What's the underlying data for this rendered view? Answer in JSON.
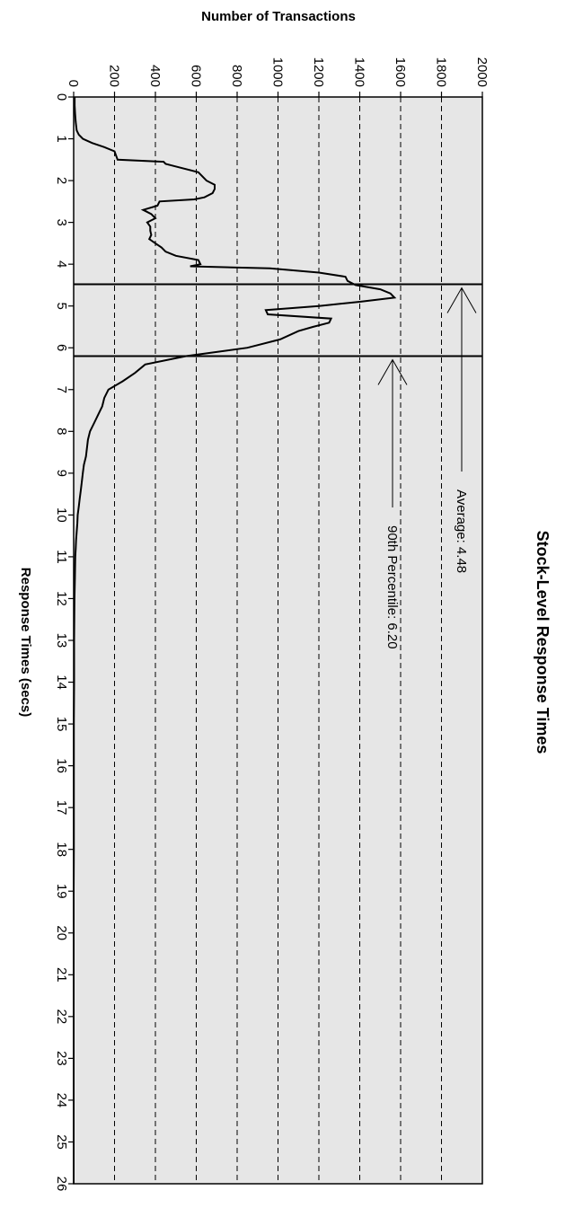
{
  "chart_data": {
    "type": "line",
    "title": "Stock-Level Response Times",
    "xlabel": "Response Times (secs)",
    "ylabel": "Number of Transactions",
    "xlim": [
      0,
      26
    ],
    "ylim": [
      0,
      2000
    ],
    "x_ticks": [
      "0",
      "1",
      "2",
      "3",
      "4",
      "5",
      "6",
      "7",
      "8",
      "9",
      "10",
      "11",
      "12",
      "13",
      "14",
      "15",
      "16",
      "17",
      "18",
      "19",
      "20",
      "21",
      "22",
      "23",
      "24",
      "25",
      "26"
    ],
    "y_ticks": [
      "0",
      "200",
      "400",
      "600",
      "800",
      "1000",
      "1200",
      "1400",
      "1600",
      "1800",
      "2000"
    ],
    "grid": "dashed horizontal",
    "background": "#e6e6e6",
    "series": [
      {
        "x": [
          0,
          0.2,
          0.4,
          0.6,
          0.8,
          0.9,
          1.0,
          1.1,
          1.2,
          1.3,
          1.5,
          1.55,
          1.6,
          1.65,
          1.8,
          2.0,
          2.1,
          2.2,
          2.3,
          2.4,
          2.45,
          2.5,
          2.6,
          2.7,
          2.8,
          2.9,
          3.0,
          3.1,
          3.2,
          3.3,
          3.4,
          3.5,
          3.6,
          3.7,
          3.8,
          3.9,
          4.0,
          4.05,
          4.1,
          4.2,
          4.3,
          4.4,
          4.5,
          4.6,
          4.7,
          4.8,
          4.9,
          5.0,
          5.1,
          5.2,
          5.3,
          5.4,
          5.5,
          5.6,
          5.8,
          6.0,
          6.2,
          6.4,
          6.6,
          6.8,
          7.0,
          7.2,
          7.4,
          7.6,
          7.8,
          8.0,
          8.2,
          8.4,
          8.6,
          8.8,
          9.0,
          9.2,
          9.4,
          9.6,
          9.8,
          10.0,
          10.2,
          10.4,
          10.6,
          10.8,
          11.0,
          11.5,
          12.0,
          12.5,
          13.0,
          14.0,
          15.0,
          16.0,
          17.0,
          18.0,
          19.0,
          20.0,
          21.0,
          22.0,
          23.0,
          24.0,
          25.0,
          26.0
        ],
        "values": [
          5,
          5,
          7,
          10,
          15,
          25,
          45,
          90,
          150,
          200,
          215,
          440,
          450,
          490,
          610,
          650,
          690,
          690,
          680,
          640,
          590,
          420,
          410,
          340,
          380,
          400,
          360,
          375,
          375,
          380,
          370,
          400,
          430,
          450,
          500,
          610,
          620,
          570,
          960,
          1200,
          1330,
          1340,
          1380,
          1500,
          1550,
          1570,
          1400,
          1200,
          940,
          950,
          1260,
          1250,
          1170,
          1100,
          1010,
          850,
          550,
          350,
          300,
          240,
          170,
          150,
          140,
          120,
          100,
          80,
          70,
          65,
          60,
          50,
          45,
          40,
          35,
          30,
          25,
          20,
          18,
          15,
          12,
          10,
          8,
          6,
          4,
          3,
          2,
          2,
          1,
          1,
          1,
          1,
          0,
          0,
          0,
          0,
          0,
          0,
          0,
          0
        ]
      }
    ],
    "annotations": [
      {
        "label": "Average: 4.48",
        "value": 4.48
      },
      {
        "label": "90th Percentile: 6.20",
        "value": 6.2
      }
    ]
  }
}
